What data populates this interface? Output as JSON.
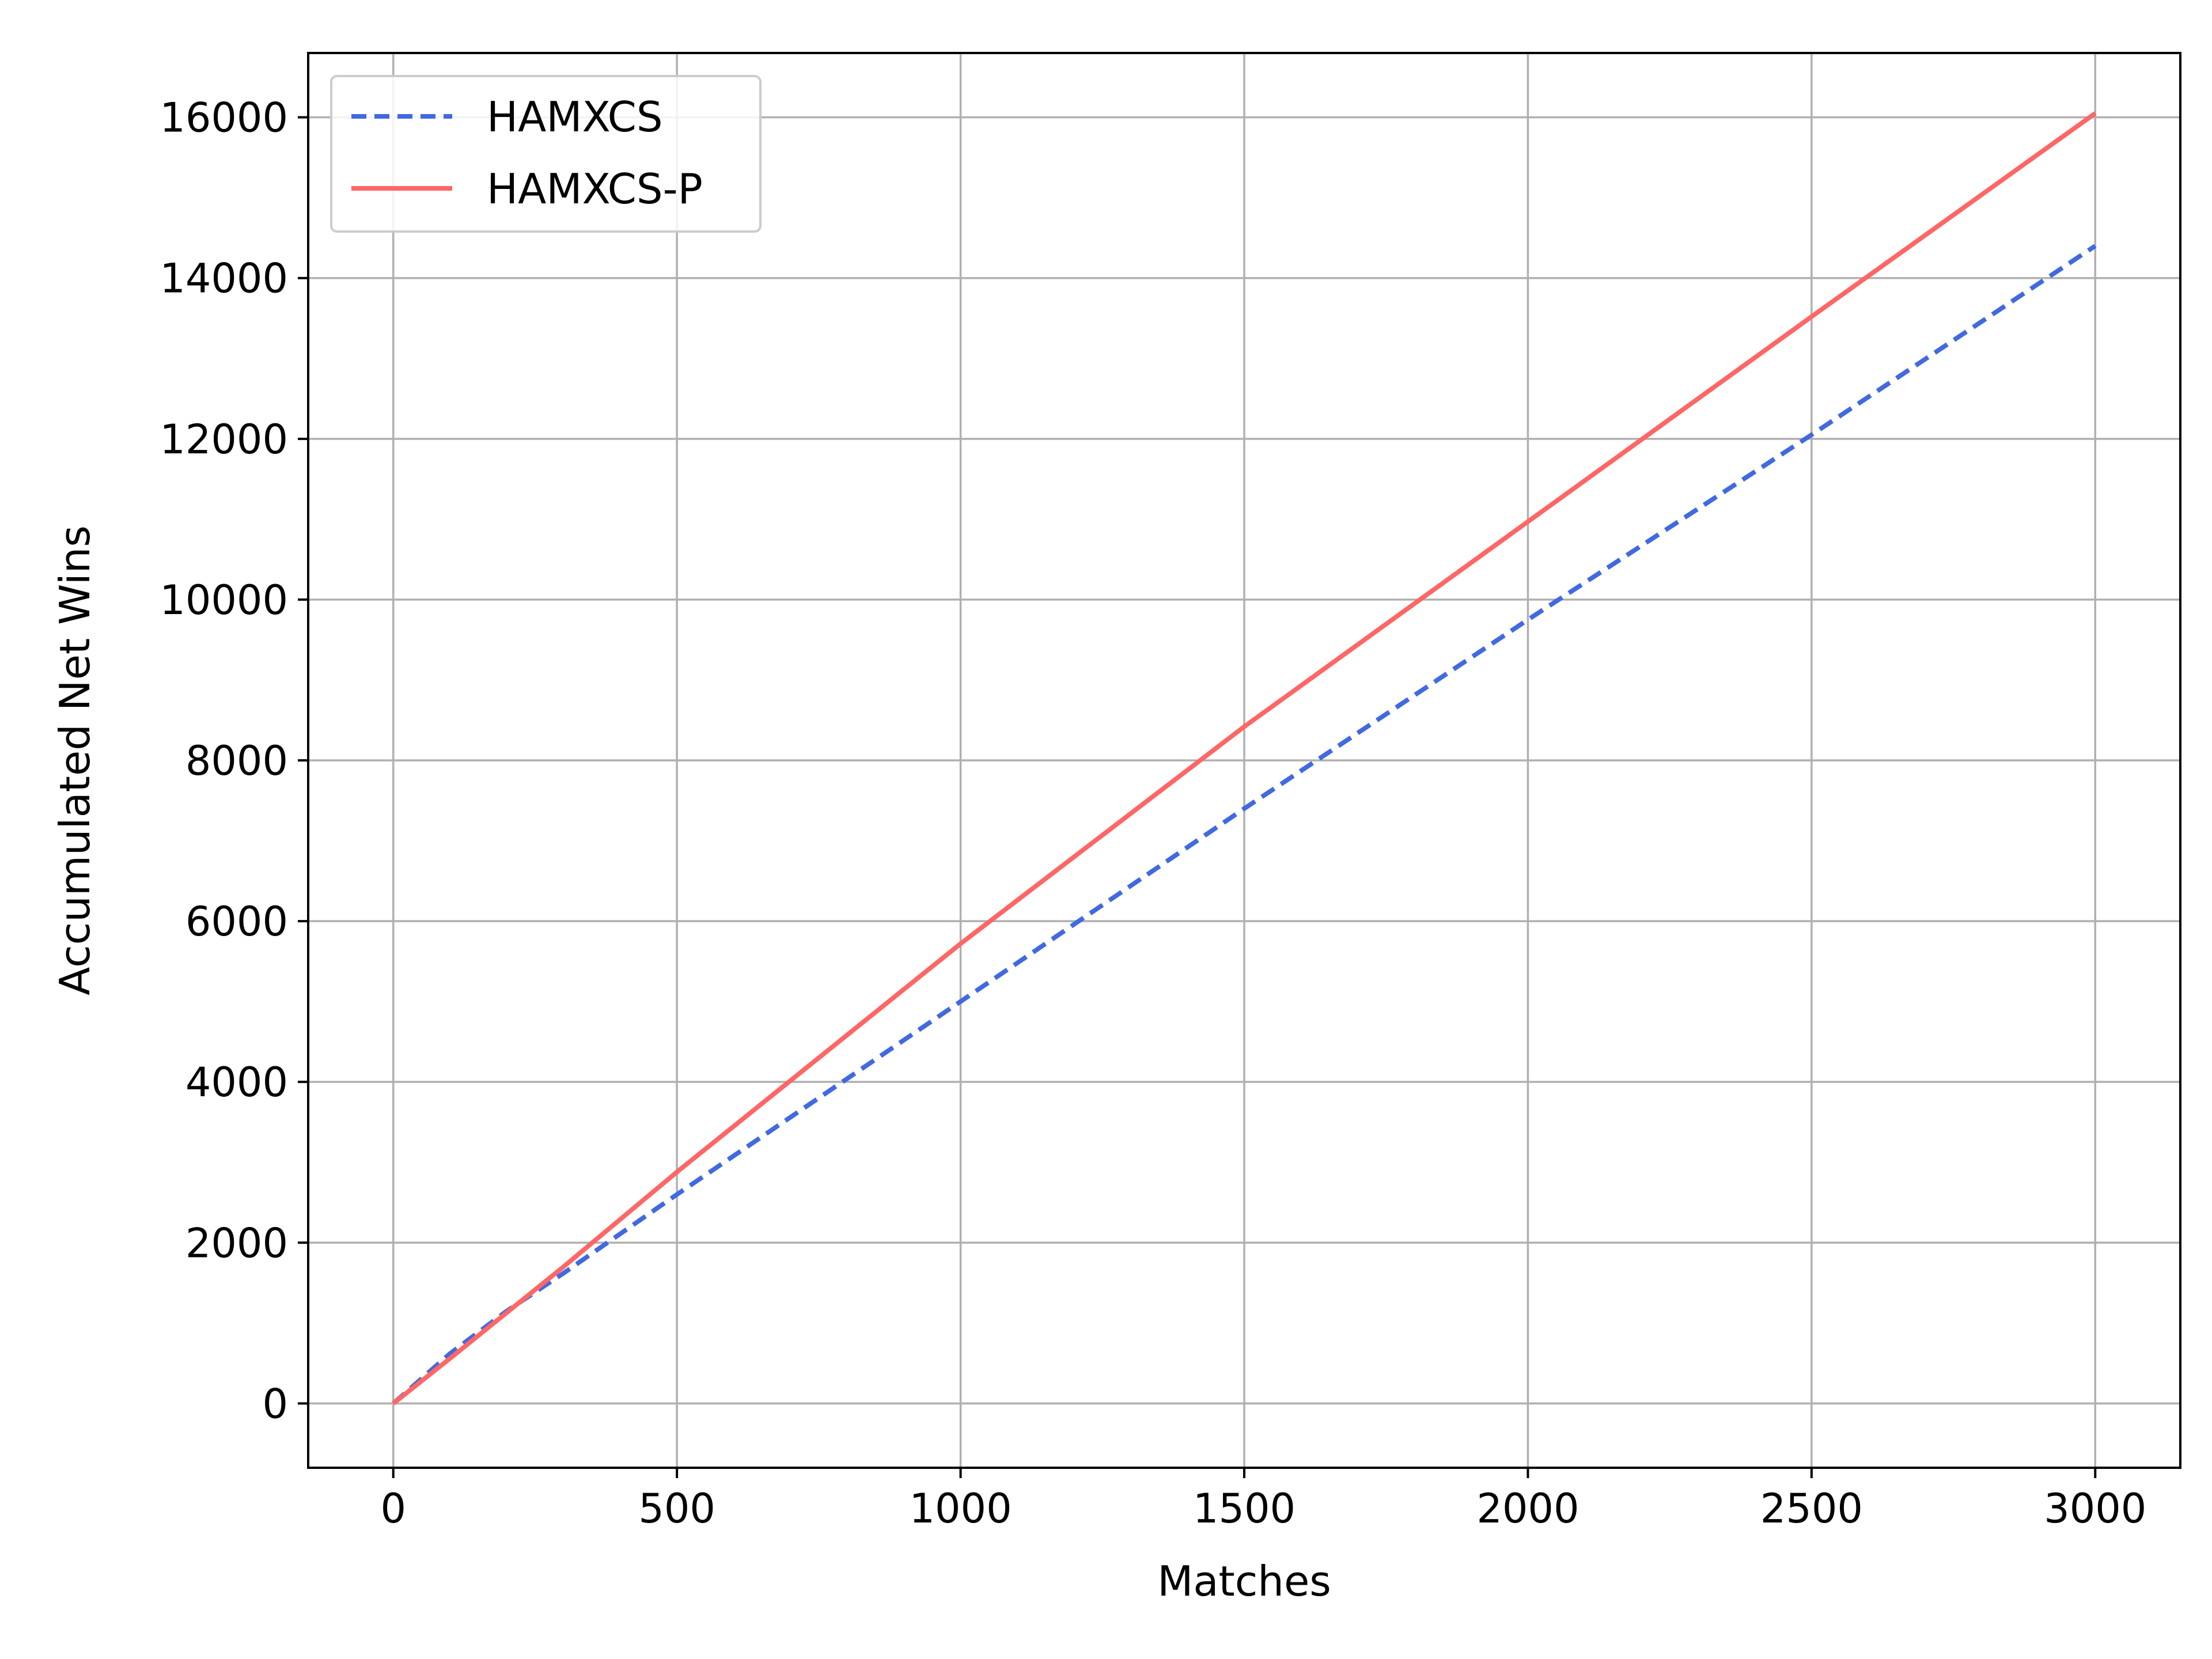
{
  "chart_data": {
    "type": "line",
    "xlabel": "Matches",
    "ylabel": "Accumulated Net Wins",
    "xlim": [
      -150,
      3150
    ],
    "ylim": [
      -800,
      16800
    ],
    "xticks": [
      0,
      500,
      1000,
      1500,
      2000,
      2500,
      3000
    ],
    "yticks": [
      0,
      2000,
      4000,
      6000,
      8000,
      10000,
      12000,
      14000,
      16000
    ],
    "grid": true,
    "legend_position": "top-left",
    "series": [
      {
        "name": "HAMXCS",
        "color": "#4169e1",
        "style": "dashed",
        "x": [
          0,
          100,
          200,
          300,
          500,
          1000,
          1500,
          2000,
          2500,
          3000
        ],
        "y": [
          0,
          620,
          1150,
          1620,
          2600,
          5000,
          7400,
          9750,
          12050,
          14400
        ]
      },
      {
        "name": "HAMXCS-P",
        "color": "#ff6666",
        "style": "solid",
        "x": [
          0,
          100,
          200,
          300,
          500,
          1000,
          1500,
          2000,
          2500,
          3000
        ],
        "y": [
          0,
          560,
          1130,
          1700,
          2880,
          5720,
          8420,
          10970,
          13520,
          16050
        ]
      }
    ]
  }
}
